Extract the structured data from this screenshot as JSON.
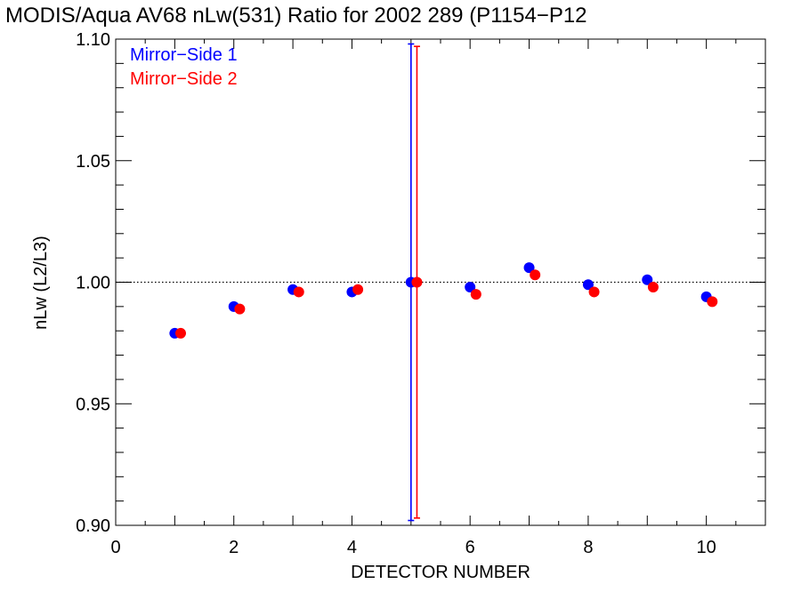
{
  "chart_data": {
    "type": "scatter",
    "title": "MODIS/Aqua AV68 nLw(531) Ratio for 2002 289 (P1154−P12",
    "xlabel": "DETECTOR NUMBER",
    "ylabel": "nLw (L2/L3)",
    "xlim": [
      0,
      11
    ],
    "ylim": [
      0.9,
      1.1
    ],
    "xticks": [
      0,
      2,
      4,
      6,
      8,
      10
    ],
    "yticks": [
      0.9,
      0.95,
      1.0,
      1.05,
      1.1
    ],
    "xtick_labels": [
      "0",
      "2",
      "4",
      "6",
      "8",
      "10"
    ],
    "ytick_labels": [
      "0.90",
      "0.95",
      "1.00",
      "1.05",
      "1.10"
    ],
    "reference_line": {
      "y": 1.0,
      "style": "dotted"
    },
    "legend": {
      "position": "top-left"
    },
    "grid": false,
    "series": [
      {
        "name": "Mirror−Side 1",
        "color": "#0000ff",
        "x": [
          1,
          2,
          3,
          4,
          5,
          6,
          7,
          8,
          9,
          10
        ],
        "y": [
          0.979,
          0.99,
          0.997,
          0.996,
          1.0,
          0.998,
          1.006,
          0.999,
          1.001,
          0.994
        ],
        "error_bars": [
          {
            "x": 5,
            "low": 0.902,
            "high": 1.098
          }
        ]
      },
      {
        "name": "Mirror−Side 2",
        "color": "#ff0000",
        "x": [
          1.1,
          2.1,
          3.1,
          4.1,
          5.1,
          6.1,
          7.1,
          8.1,
          9.1,
          10.1
        ],
        "y": [
          0.979,
          0.989,
          0.996,
          0.997,
          1.0,
          0.995,
          1.003,
          0.996,
          0.998,
          0.992
        ],
        "error_bars": [
          {
            "x": 5.1,
            "low": 0.903,
            "high": 1.097
          }
        ]
      }
    ]
  }
}
